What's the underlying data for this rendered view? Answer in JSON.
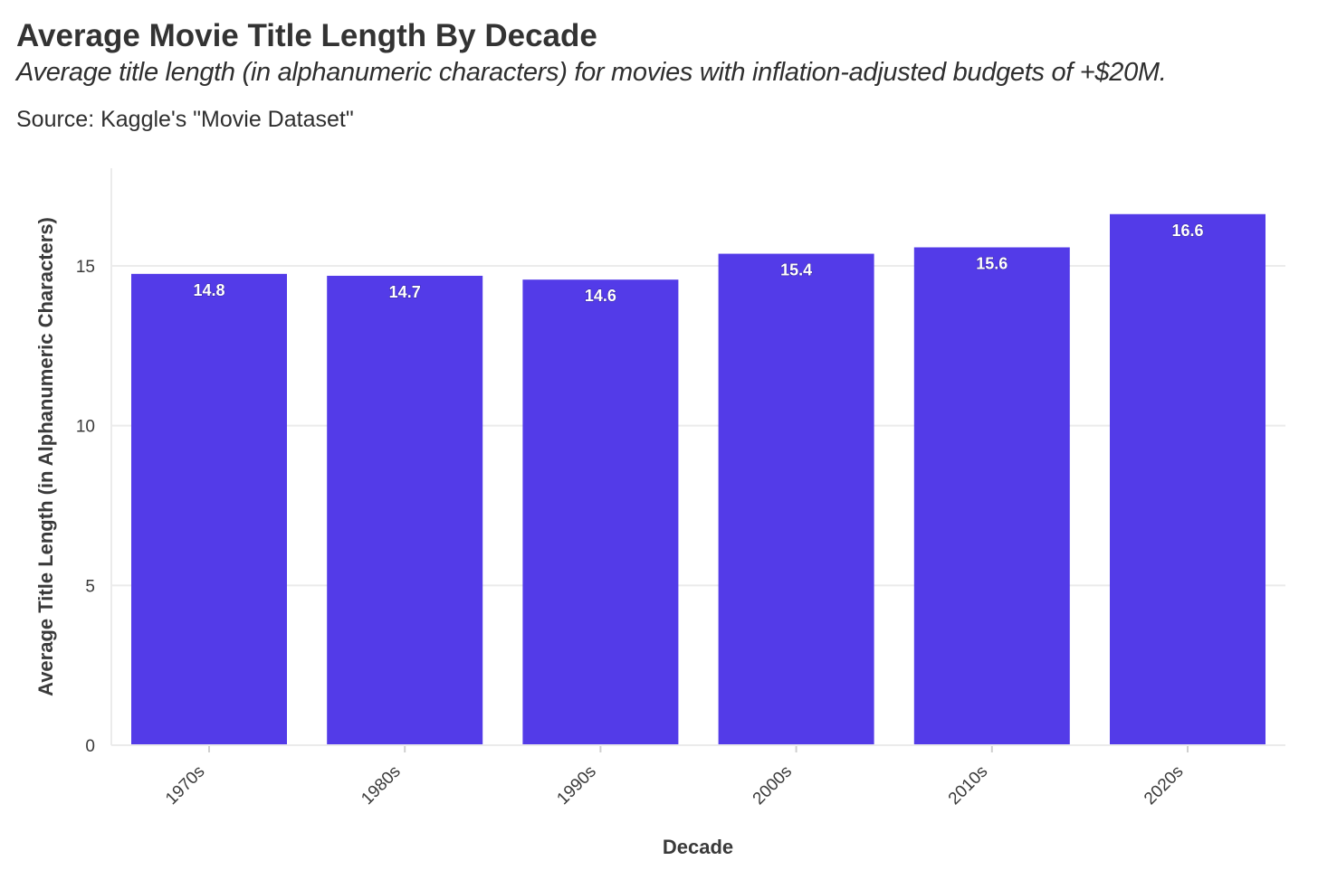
{
  "header": {
    "title": "Average Movie Title Length By Decade",
    "subtitle": "Average title length (in alphanumeric characters) for movies with inflation-adjusted budgets of +$20M.",
    "caption": "Source: Kaggle's \"Movie Dataset\""
  },
  "colors": {
    "bar": "#533BE8",
    "grid": "#ebebeb",
    "text": "#3a3a3a"
  },
  "chart_data": {
    "type": "bar",
    "categories": [
      "1970s",
      "1980s",
      "1990s",
      "2000s",
      "2010s",
      "2020s"
    ],
    "values": [
      14.75,
      14.69,
      14.57,
      15.38,
      15.58,
      16.62
    ],
    "data_labels": [
      "14.8",
      "14.7",
      "14.6",
      "15.4",
      "15.6",
      "16.6"
    ],
    "title": "Average Movie Title Length By Decade",
    "xlabel": "Decade",
    "ylabel": "Average Title Length (in Alphanumeric Characters)",
    "ylim": [
      0,
      18
    ],
    "yticks": [
      0,
      5,
      10,
      15
    ],
    "grid": true,
    "legend": "none"
  }
}
